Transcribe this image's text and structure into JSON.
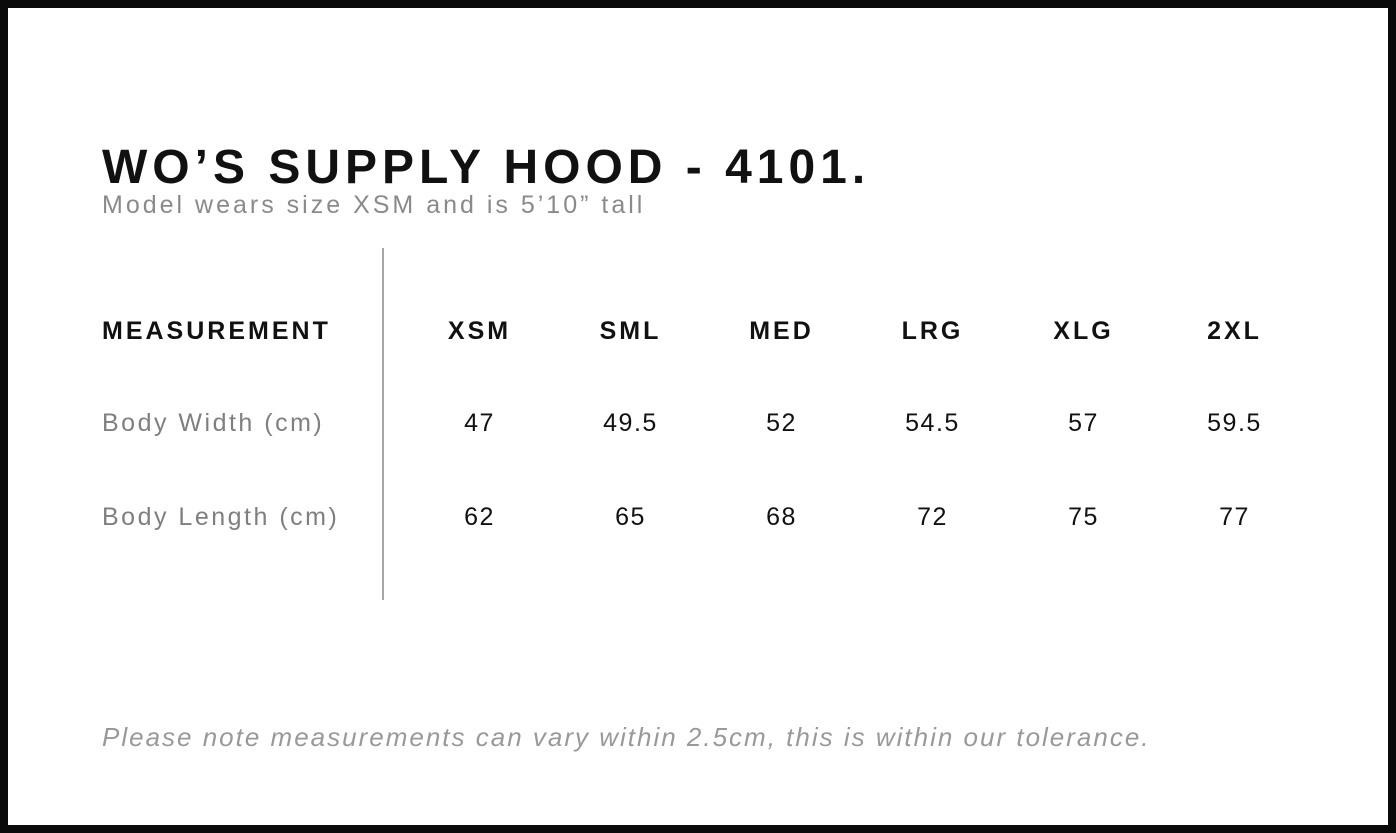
{
  "page": {
    "title": "WO’S SUPPLY HOOD - 4101.",
    "subtitle": "Model wears size XSM and is 5’10” tall",
    "tolerance_note": "Please note measurements can vary within 2.5cm, this is within our tolerance."
  },
  "table": {
    "measurement_header": "MEASUREMENT",
    "size_headers": [
      "XSM",
      "SML",
      "MED",
      "LRG",
      "XLG",
      "2XL"
    ],
    "rows": [
      {
        "label": "Body Width (cm)",
        "values": [
          "47",
          "49.5",
          "52",
          "54.5",
          "57",
          "59.5"
        ]
      },
      {
        "label": "Body Length (cm)",
        "values": [
          "62",
          "65",
          "68",
          "72",
          "75",
          "77"
        ]
      }
    ]
  },
  "colors": {
    "frame_border": "#0a0a0a",
    "text_primary": "#111111",
    "text_secondary": "#8a8a8a",
    "note_text": "#999999",
    "divider": "#a6a6a6",
    "background": "#ffffff"
  }
}
